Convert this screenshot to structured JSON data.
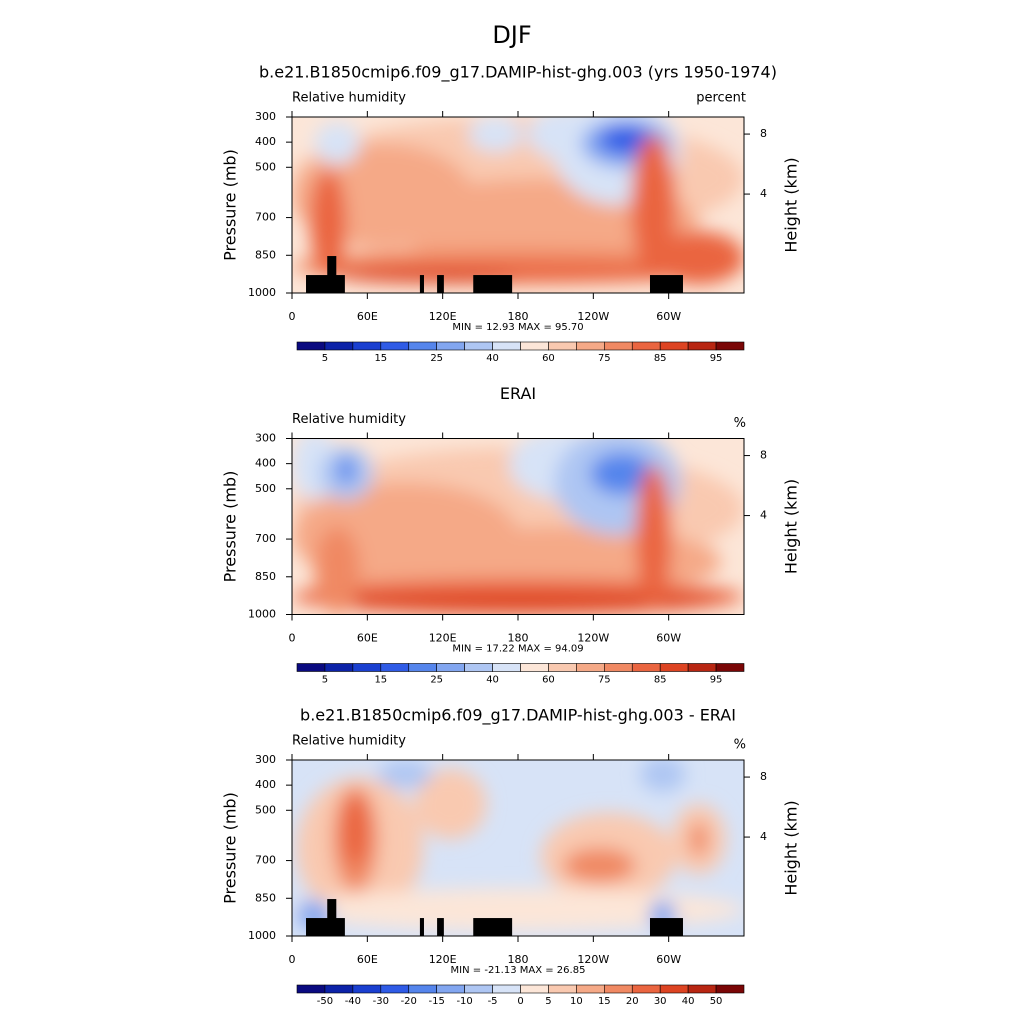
{
  "title": "DJF",
  "chart_data": [
    {
      "type": "contour",
      "title": "b.e21.B1850cmip6.f09_g17.DAMIP-hist-ghg.003 (yrs 1950-1974)",
      "left_label": "Relative humidity",
      "right_label": "percent",
      "ylabel": "Pressure (mb)",
      "y2label": "Height (km)",
      "xlim": [
        0,
        360
      ],
      "xticks": [
        0,
        {
          "value": 60,
          "label": "60E"
        },
        {
          "value": 120,
          "label": "120E"
        },
        180,
        {
          "value": 240,
          "label": "120W"
        },
        {
          "value": 300,
          "label": "60W"
        }
      ],
      "ylim": [
        1000,
        300
      ],
      "yticks": [
        300,
        400,
        500,
        700,
        850,
        1000
      ],
      "y2ticks": [
        4,
        8
      ],
      "stats": "MIN =  12.93  MAX =  95.70",
      "colors": [
        "#0a0a80",
        "#0c22a8",
        "#1a3fd0",
        "#2f5be6",
        "#5585ec",
        "#82a6f0",
        "#aec6f3",
        "#d7e3f7",
        "#fce6d8",
        "#f9c9b0",
        "#f5a987",
        "#f08963",
        "#ea6540",
        "#dd4422",
        "#b82612",
        "#7a0606"
      ],
      "colorbar_ticks": [
        5,
        15,
        25,
        40,
        60,
        75,
        85,
        95
      ]
    },
    {
      "type": "contour",
      "title": "ERAI",
      "left_label": "Relative humidity",
      "right_label": "%",
      "ylabel": "Pressure (mb)",
      "y2label": "Height (km)",
      "xlim": [
        0,
        360
      ],
      "xticks": [
        0,
        {
          "value": 60,
          "label": "60E"
        },
        {
          "value": 120,
          "label": "120E"
        },
        180,
        {
          "value": 240,
          "label": "120W"
        },
        {
          "value": 300,
          "label": "60W"
        }
      ],
      "ylim": [
        1000,
        300
      ],
      "yticks": [
        300,
        400,
        500,
        700,
        850,
        1000
      ],
      "y2ticks": [
        4,
        8
      ],
      "stats": "MIN =  17.22  MAX =  94.09",
      "colors": [
        "#0a0a80",
        "#0c22a8",
        "#1a3fd0",
        "#2f5be6",
        "#5585ec",
        "#82a6f0",
        "#aec6f3",
        "#d7e3f7",
        "#fce6d8",
        "#f9c9b0",
        "#f5a987",
        "#f08963",
        "#ea6540",
        "#dd4422",
        "#b82612",
        "#7a0606"
      ],
      "colorbar_ticks": [
        5,
        15,
        25,
        40,
        60,
        75,
        85,
        95
      ]
    },
    {
      "type": "contour",
      "title": "b.e21.B1850cmip6.f09_g17.DAMIP-hist-ghg.003 - ERAI",
      "left_label": "Relative humidity",
      "right_label": "%",
      "ylabel": "Pressure (mb)",
      "y2label": "Height (km)",
      "xlim": [
        0,
        360
      ],
      "xticks": [
        0,
        {
          "value": 60,
          "label": "60E"
        },
        {
          "value": 120,
          "label": "120E"
        },
        180,
        {
          "value": 240,
          "label": "120W"
        },
        {
          "value": 300,
          "label": "60W"
        }
      ],
      "ylim": [
        1000,
        300
      ],
      "yticks": [
        300,
        400,
        500,
        700,
        850,
        1000
      ],
      "y2ticks": [
        4,
        8
      ],
      "stats": "MIN = -21.13  MAX =  26.85",
      "colors": [
        "#0a0a80",
        "#0c22a8",
        "#1a3fd0",
        "#2f5be6",
        "#5585ec",
        "#82a6f0",
        "#aec6f3",
        "#d7e3f7",
        "#fce6d8",
        "#f9c9b0",
        "#f5a987",
        "#f08963",
        "#ea6540",
        "#dd4422",
        "#b82612",
        "#7a0606"
      ],
      "colorbar_ticks": [
        -50,
        -40,
        -30,
        -20,
        -15,
        -10,
        -5,
        0,
        5,
        10,
        15,
        20,
        30,
        40,
        50
      ]
    }
  ]
}
